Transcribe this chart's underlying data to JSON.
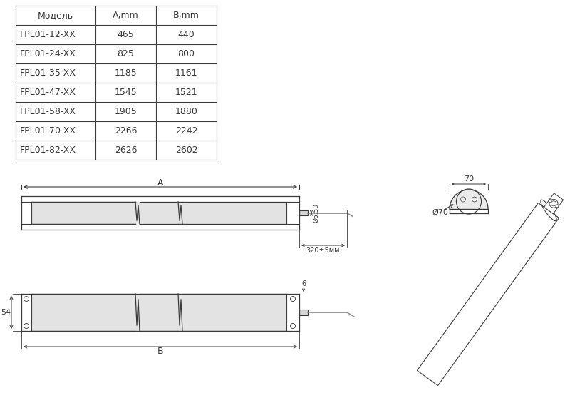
{
  "table_headers": [
    "Модель",
    "А,mm",
    "В,mm"
  ],
  "table_rows": [
    [
      "FPL01-12-XX",
      "465",
      "440"
    ],
    [
      "FPL01-24-XX",
      "825",
      "800"
    ],
    [
      "FPL01-35-XX",
      "1185",
      "1161"
    ],
    [
      "FPL01-47-XX",
      "1545",
      "1521"
    ],
    [
      "FPL01-58-XX",
      "1905",
      "1880"
    ],
    [
      "FPL01-70-XX",
      "2266",
      "2242"
    ],
    [
      "FPL01-82-XX",
      "2626",
      "2602"
    ]
  ],
  "bg_color": "#ffffff",
  "line_color": "#3a3a3a",
  "gray_color": "#888888",
  "light_gray": "#d8d8d8",
  "font_size_table": 9,
  "label_A": "A",
  "label_B": "B",
  "label_320": "320±5мм",
  "label_54": "54",
  "label_6_top": "6",
  "label_6_50": "Ø6,50",
  "label_70_top": "70",
  "label_70_dia": "Ø70"
}
